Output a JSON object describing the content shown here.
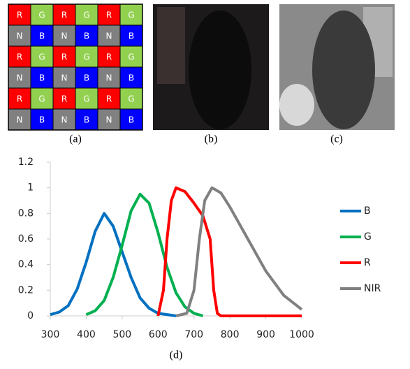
{
  "mosaic": {
    "rows": [
      [
        "R",
        "G",
        "R",
        "G",
        "R",
        "G"
      ],
      [
        "N",
        "B",
        "N",
        "B",
        "N",
        "B"
      ],
      [
        "R",
        "G",
        "R",
        "G",
        "R",
        "G"
      ],
      [
        "N",
        "B",
        "N",
        "B",
        "N",
        "B"
      ],
      [
        "R",
        "G",
        "R",
        "G",
        "R",
        "G"
      ],
      [
        "N",
        "B",
        "N",
        "B",
        "N",
        "B"
      ]
    ],
    "colors": {
      "R": "#ff0000",
      "G": "#92d050",
      "B": "#0000ff",
      "N": "#808080"
    }
  },
  "captions": [
    "(a)",
    "(b)",
    "(c)",
    "(d)"
  ],
  "chart_data": {
    "type": "line",
    "xlim": [
      300,
      1000
    ],
    "ylim": [
      0,
      1.2
    ],
    "xticks": [
      300,
      400,
      500,
      600,
      700,
      800,
      900,
      1000
    ],
    "yticks": [
      0,
      0.2,
      0.4,
      0.6,
      0.8,
      1,
      1.2
    ],
    "series": [
      {
        "name": "B",
        "color": "#0070c0",
        "x": [
          300,
          325,
          350,
          375,
          400,
          425,
          450,
          475,
          500,
          525,
          550,
          575,
          600,
          625,
          650
        ],
        "values": [
          0.01,
          0.03,
          0.08,
          0.21,
          0.42,
          0.66,
          0.8,
          0.7,
          0.5,
          0.3,
          0.14,
          0.06,
          0.02,
          0.01,
          0
        ]
      },
      {
        "name": "G",
        "color": "#00b050",
        "x": [
          400,
          425,
          450,
          475,
          500,
          525,
          550,
          575,
          600,
          625,
          650,
          675,
          700,
          725
        ],
        "values": [
          0.01,
          0.04,
          0.12,
          0.3,
          0.55,
          0.82,
          0.95,
          0.88,
          0.65,
          0.38,
          0.18,
          0.07,
          0.02,
          0
        ]
      },
      {
        "name": "R",
        "color": "#ff0000",
        "x": [
          600,
          615,
          625,
          637,
          650,
          675,
          700,
          725,
          745,
          755,
          765,
          775,
          1000
        ],
        "values": [
          0,
          0.2,
          0.6,
          0.9,
          1,
          0.97,
          0.88,
          0.78,
          0.6,
          0.2,
          0.02,
          0,
          0
        ]
      },
      {
        "name": "NIR",
        "color": "#808080",
        "x": [
          650,
          680,
          700,
          715,
          730,
          750,
          775,
          800,
          850,
          900,
          950,
          1000
        ],
        "values": [
          0,
          0.02,
          0.2,
          0.6,
          0.9,
          1,
          0.96,
          0.85,
          0.6,
          0.35,
          0.16,
          0.05
        ]
      }
    ]
  }
}
